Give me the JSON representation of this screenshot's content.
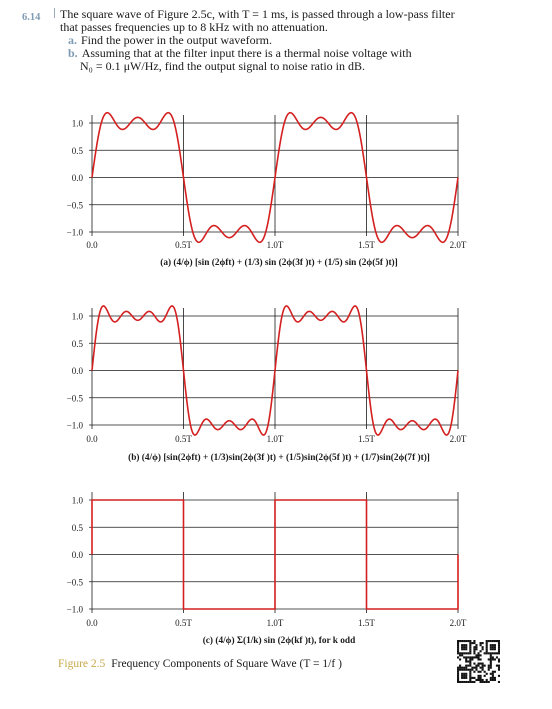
{
  "problem": {
    "number": "6.14",
    "stem_line1": "The square wave of Figure 2.5c, with T = 1 ms, is passed through a low-pass filter",
    "stem_line2": "that passes frequencies up to 8 kHz with no attenuation.",
    "part_a_letter": "a.",
    "part_a": "Find the power in the output waveform.",
    "part_b_letter": "b.",
    "part_b_line1": "Assuming that at the filter input there is a thermal noise voltage with",
    "part_b_line2": "N₀ = 0.1 μW/Hz, find the output signal to noise ratio in dB."
  },
  "colors": {
    "signal": "#d42020",
    "grid": "#1a1a1a",
    "label_blue": "#7f9bb3",
    "label_gold": "#c7a84a"
  },
  "chart_data": [
    {
      "type": "line",
      "title": "(a) (4/ϕ) [sin (2ϕft) + (1/3) sin (2ϕ(3f )t) + (1/5) sin (2ϕ(5f )t)]",
      "ylim": [
        -1.0,
        1.0
      ],
      "y_ticks": [
        "1.0",
        "0.5",
        "0.0",
        "−0.5",
        "−1.0"
      ],
      "x_ticks": [
        "0.0",
        "0.5T",
        "1.0T",
        "1.5T",
        "2.0T"
      ],
      "harmonics": [
        1,
        3,
        5
      ],
      "x_range_periods": [
        0,
        2
      ]
    },
    {
      "type": "line",
      "title": "(b) (4/ϕ) [sin(2ϕft) + (1/3)sin(2ϕ(3f )t) + (1/5)sin(2ϕ(5f )t) + (1/7)sin(2ϕ(7f )t)]",
      "ylim": [
        -1.0,
        1.0
      ],
      "y_ticks": [
        "1.0",
        "0.5",
        "0.0",
        "−0.5",
        "−1.0"
      ],
      "x_ticks": [
        "0.0",
        "0.5T",
        "1.0T",
        "1.5T",
        "2.0T"
      ],
      "harmonics": [
        1,
        3,
        5,
        7
      ],
      "x_range_periods": [
        0,
        2
      ]
    },
    {
      "type": "line",
      "title": "(c) (4/ϕ) Σ(1/k) sin (2ϕ(kf )t),  for k odd",
      "ylim": [
        -1.0,
        1.0
      ],
      "y_ticks": [
        "1.0",
        "0.5",
        "0.0",
        "−0.5",
        "−1.0"
      ],
      "x_ticks": [
        "0.0",
        "0.5T",
        "1.0T",
        "1.5T",
        "2.0T"
      ],
      "harmonics": "square",
      "x_range_periods": [
        0,
        2
      ]
    }
  ],
  "figure": {
    "label": "Figure 2.5",
    "caption": "Frequency Components of Square Wave (T = 1/f )"
  }
}
